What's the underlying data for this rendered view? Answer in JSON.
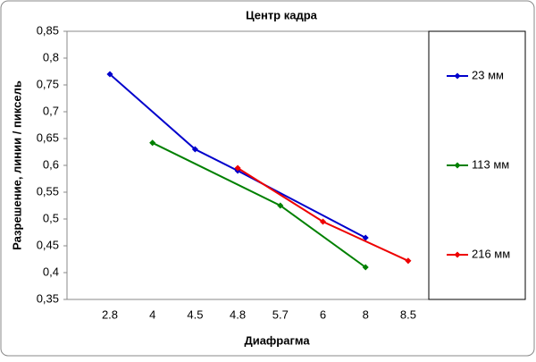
{
  "chart_data": {
    "type": "line",
    "title": "Центр кадра",
    "x_label": "Диафрагма",
    "y_label": "Разрешение, линии / пиксель",
    "categories": [
      "2.8",
      "4",
      "4.5",
      "4.8",
      "5.7",
      "6",
      "8",
      "8.5"
    ],
    "ylim": [
      0.35,
      0.85
    ],
    "yticks": [
      {
        "value": 0.35,
        "label": "0,35"
      },
      {
        "value": 0.4,
        "label": "0,4"
      },
      {
        "value": 0.45,
        "label": "0,45"
      },
      {
        "value": 0.5,
        "label": "0,5"
      },
      {
        "value": 0.55,
        "label": "0,55"
      },
      {
        "value": 0.6,
        "label": "0,6"
      },
      {
        "value": 0.65,
        "label": "0,65"
      },
      {
        "value": 0.7,
        "label": "0,7"
      },
      {
        "value": 0.75,
        "label": "0,75"
      },
      {
        "value": 0.8,
        "label": "0,8"
      },
      {
        "value": 0.85,
        "label": "0,85"
      }
    ],
    "grid": false,
    "legend": "right",
    "series": [
      {
        "name": "23 мм",
        "color": "#0000cc",
        "x": [
          "2.8",
          "4.5",
          "4.8",
          "8"
        ],
        "values": [
          0.77,
          0.63,
          0.59,
          0.465
        ]
      },
      {
        "name": "113 мм",
        "color": "#008000",
        "x": [
          "4",
          "5.7",
          "8"
        ],
        "values": [
          0.642,
          0.525,
          0.41
        ]
      },
      {
        "name": "216 мм",
        "color": "#ee0000",
        "x": [
          "4.8",
          "6",
          "8.5"
        ],
        "values": [
          0.595,
          0.495,
          0.422
        ]
      }
    ]
  }
}
